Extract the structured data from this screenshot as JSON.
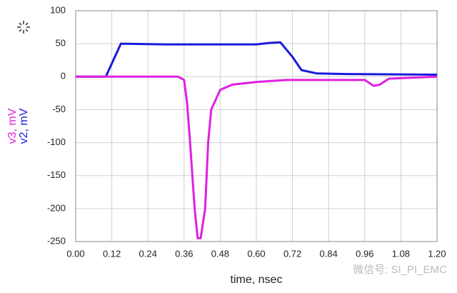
{
  "chart_data": {
    "type": "line",
    "xlabel": "time, nsec",
    "ylabels": [
      {
        "text": "v3, mV",
        "color": "#e020e0"
      },
      {
        "text": "v2, mV",
        "color": "#1a1adc"
      }
    ],
    "annotation": "微信号: SI_PI_EMC",
    "xlim": [
      0,
      1.2
    ],
    "ylim": [
      -250,
      100
    ],
    "xticks": [
      {
        "value": 0,
        "label": "0.00"
      },
      {
        "value": 0.12,
        "label": "0.12"
      },
      {
        "value": 0.24,
        "label": "0.24"
      },
      {
        "value": 0.36,
        "label": "0.36"
      },
      {
        "value": 0.48,
        "label": "0.48"
      },
      {
        "value": 0.6,
        "label": "0.60"
      },
      {
        "value": 0.72,
        "label": "0.72"
      },
      {
        "value": 0.84,
        "label": "0.84"
      },
      {
        "value": 0.96,
        "label": "0.96"
      },
      {
        "value": 1.08,
        "label": "1.08"
      },
      {
        "value": 1.2,
        "label": "1.20"
      }
    ],
    "yticks": [
      100,
      50,
      0,
      -50,
      -100,
      -150,
      -200,
      -250
    ],
    "grid": true,
    "series": [
      {
        "name": "v2",
        "color": "#1a1adc",
        "x": [
          0,
          0.1,
          0.15,
          0.3,
          0.6,
          0.64,
          0.68,
          0.72,
          0.75,
          0.8,
          0.9,
          1.2
        ],
        "values": [
          0,
          0,
          50,
          49,
          49,
          51,
          52,
          30,
          10,
          5,
          4,
          3
        ]
      },
      {
        "name": "v3",
        "color": "#e020e0",
        "x": [
          0,
          0.34,
          0.36,
          0.37,
          0.38,
          0.395,
          0.405,
          0.415,
          0.43,
          0.44,
          0.45,
          0.48,
          0.52,
          0.6,
          0.7,
          0.96,
          0.99,
          1.01,
          1.04,
          1.2
        ],
        "values": [
          0,
          0,
          -5,
          -40,
          -100,
          -200,
          -245,
          -245,
          -200,
          -100,
          -50,
          -20,
          -12,
          -8,
          -5,
          -5,
          -14,
          -12,
          -3,
          0
        ]
      }
    ]
  }
}
